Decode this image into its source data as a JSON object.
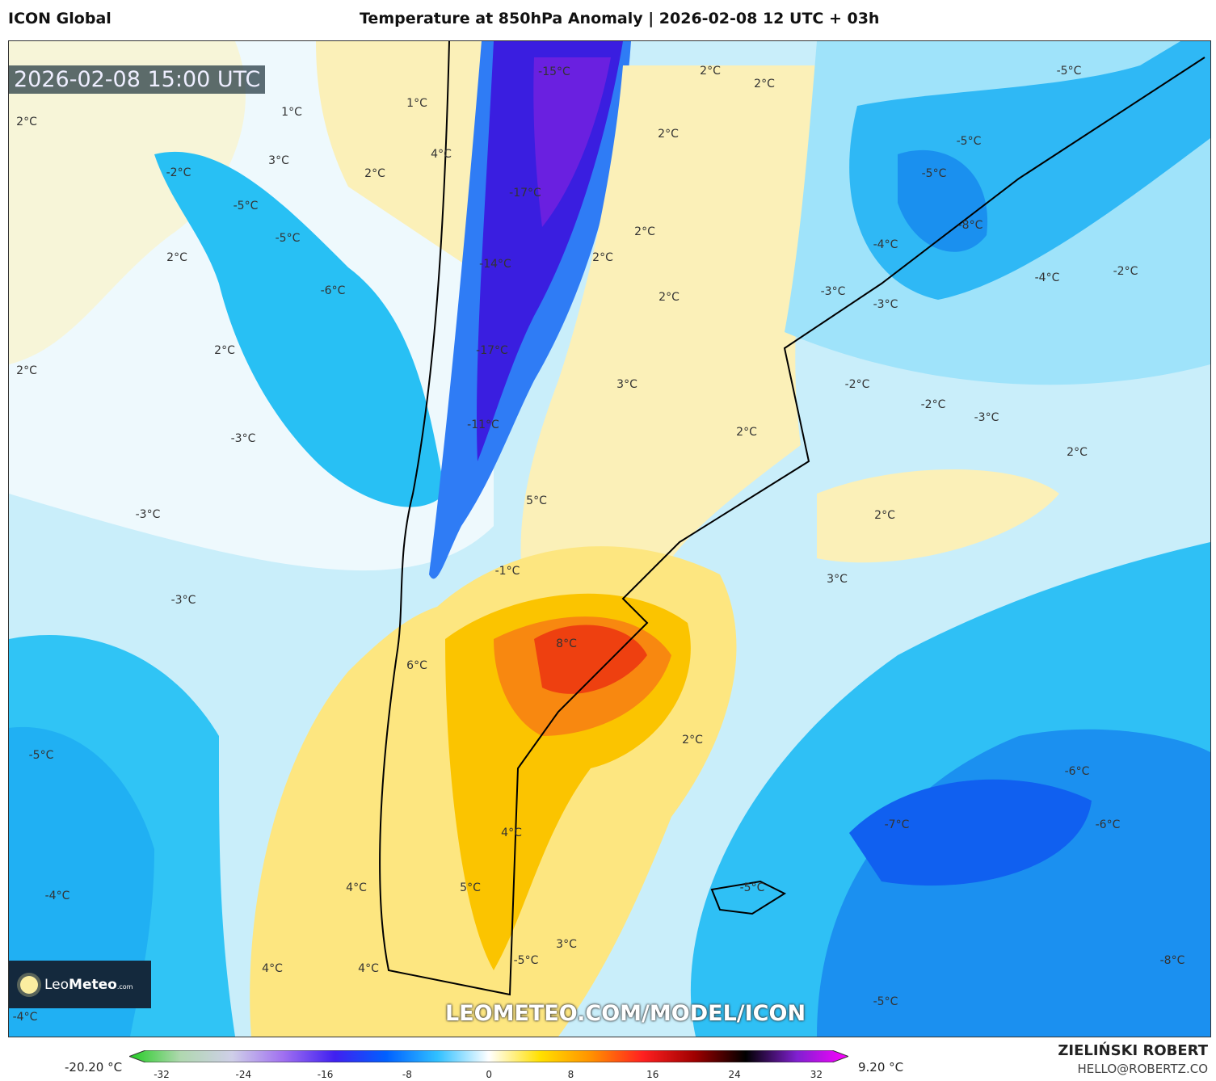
{
  "header": {
    "model": "ICON Global",
    "title": "Temperature at 850hPa Anomaly | 2026-02-08 12 UTC + 03h"
  },
  "map": {
    "timestamp": "2026-02-08 15:00 UTC",
    "watermark_url": "LEOMETEO.COM/MODEL/ICON",
    "logo": {
      "name": "Leo",
      "bold": "Meteo",
      "suffix": ".com"
    },
    "contour_labels": [
      "1°C",
      "2°C",
      "1°C",
      "4°C",
      "3°C",
      "-2°C",
      "2°C",
      "-5°C",
      "-5°C",
      "2°C",
      "-6°C",
      "2°C",
      "2°C",
      "-3°C",
      "-3°C",
      "-3°C",
      "-5°C",
      "-15°C",
      "-17°C",
      "-14°C",
      "-17°C",
      "-11°C",
      "5°C",
      "-1°C",
      "8°C",
      "6°C",
      "4°C",
      "5°C",
      "4°C",
      "4°C",
      "4°C",
      "-4°C",
      "-4°C",
      "3°C",
      "2°C",
      "2°C",
      "2°C",
      "2°C",
      "2°C",
      "2°C",
      "2°C",
      "-5°C",
      "3°C",
      "2°C",
      "2°C",
      "3°C",
      "-5°C",
      "-5°C",
      "-5°C",
      "-8°C",
      "-4°C",
      "-3°C",
      "-3°C",
      "-4°C",
      "-2°C",
      "-2°C",
      "-2°C",
      "-3°C",
      "2°C",
      "-6°C",
      "-7°C",
      "-6°C",
      "-5°C",
      "-8°C",
      "-5°C"
    ]
  },
  "colorbar": {
    "min_label": "-20.20 °C",
    "max_label": "9.20 °C",
    "ticks": [
      "-32",
      "-24",
      "-16",
      "-8",
      "0",
      "8",
      "16",
      "24",
      "32"
    ],
    "colors": [
      "#22cc22",
      "#b0d8b0",
      "#cfcfe8",
      "#a070f0",
      "#4020f0",
      "#0060ff",
      "#30c0ff",
      "#ffffff",
      "#ffe000",
      "#ff9000",
      "#ff2020",
      "#a00000",
      "#000000",
      "#8020d0",
      "#ff00ff"
    ]
  },
  "credits": {
    "author": "ZIELIŃSKI ROBERT",
    "email": "HELLO@ROBERTZ.CO"
  }
}
